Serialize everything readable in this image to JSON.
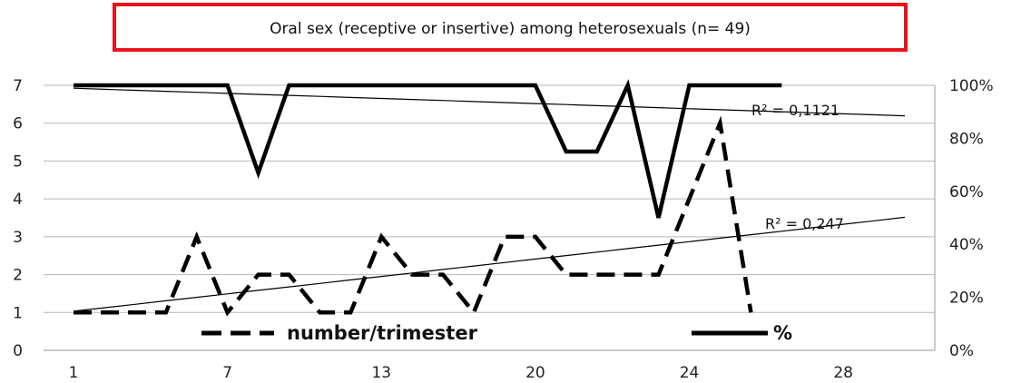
{
  "chart_data": {
    "type": "line",
    "title": "Oral sex (receptive or insertive) among heterosexuals (n= 49)",
    "x": [
      1,
      2,
      3,
      4,
      5,
      6,
      7,
      8,
      9,
      10,
      11,
      12,
      13,
      14,
      15,
      16,
      17,
      18,
      19,
      20,
      21,
      22,
      23,
      24,
      25,
      26,
      27,
      28
    ],
    "x_tick_labels": [
      "1",
      "7",
      "13",
      "20",
      "24",
      "28"
    ],
    "x_tick_at": [
      1,
      6,
      11,
      16,
      21,
      26
    ],
    "left_ylim": [
      0,
      7
    ],
    "left_yticks": [
      "0",
      "1",
      "2",
      "3",
      "4",
      "5",
      "6",
      "7"
    ],
    "right_ylim": [
      0,
      100
    ],
    "right_yticks": [
      "0%",
      "20%",
      "40%",
      "60%",
      "80%",
      "100%"
    ],
    "grid": "horizontal",
    "series": [
      {
        "name": "number/trimester",
        "axis": "left",
        "style": "dashed",
        "values": [
          1,
          1,
          1,
          1,
          3,
          1,
          2,
          2,
          1,
          1,
          3,
          2,
          2,
          1,
          3,
          3,
          2,
          2,
          2,
          2,
          4,
          6,
          1,
          null,
          null,
          null,
          null,
          null
        ]
      },
      {
        "name": "%",
        "axis": "right",
        "style": "solid",
        "values": [
          100,
          100,
          100,
          100,
          100,
          100,
          67,
          100,
          100,
          100,
          100,
          100,
          100,
          100,
          100,
          100,
          75,
          75,
          100,
          50,
          100,
          100,
          100,
          100,
          null,
          null,
          null,
          null
        ]
      }
    ],
    "trendlines": [
      {
        "label": "R² = 0,1121",
        "axis": "right"
      },
      {
        "label": "R² = 0,247",
        "axis": "left"
      }
    ],
    "legend_position": "bottom-inside"
  }
}
